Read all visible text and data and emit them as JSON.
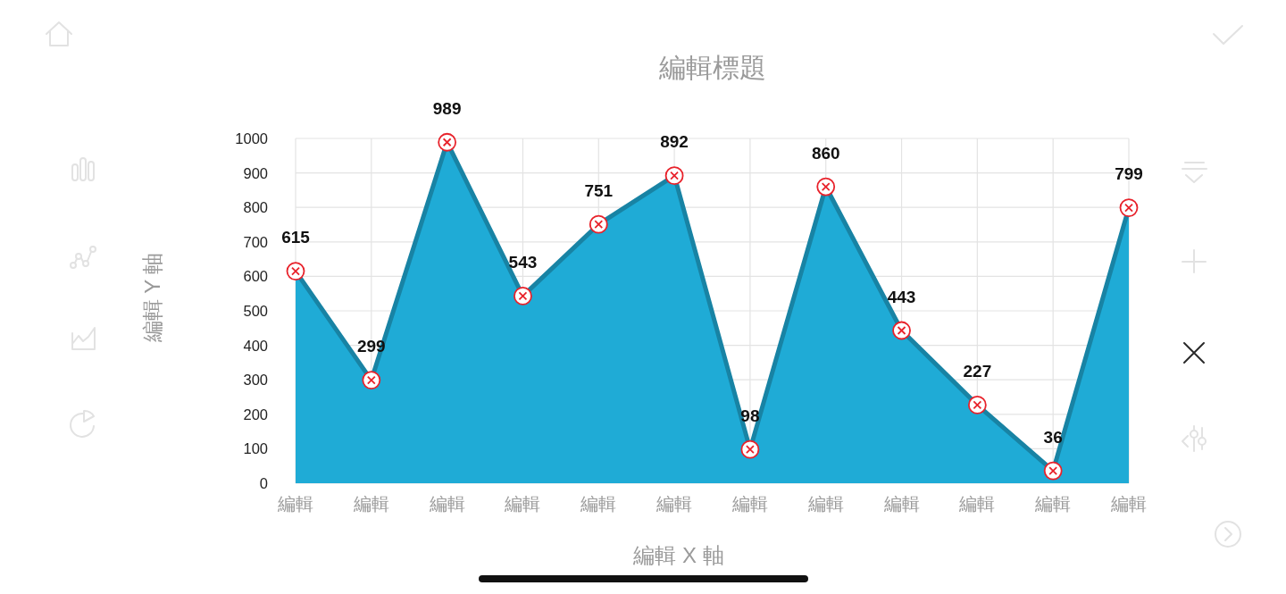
{
  "chart_data": {
    "type": "area",
    "title": "編輯標題",
    "xlabel": "編輯 X 軸",
    "ylabel": "編輯 Y 軸",
    "categories": [
      "編輯",
      "編輯",
      "編輯",
      "編輯",
      "編輯",
      "編輯",
      "編輯",
      "編輯",
      "編輯",
      "編輯",
      "編輯",
      "編輯"
    ],
    "values": [
      615,
      299,
      989,
      543,
      751,
      892,
      98,
      860,
      443,
      227,
      36,
      799
    ],
    "color": "#1fabd6",
    "ylim": [
      0,
      1000
    ],
    "yticks": [
      0,
      100,
      200,
      300,
      400,
      500,
      600,
      700,
      800,
      900,
      1000
    ],
    "grid": true,
    "marker": "circle",
    "data_labels": true
  }
}
